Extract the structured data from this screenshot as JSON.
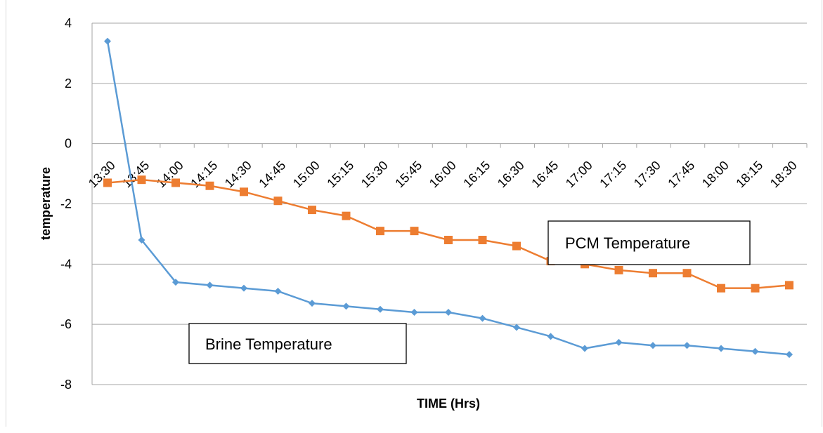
{
  "chart_data": {
    "type": "line",
    "title": "",
    "xlabel": "TIME (Hrs)",
    "ylabel": "temperature",
    "ylim": [
      -8,
      4
    ],
    "yticks": [
      4,
      2,
      0,
      -2,
      -4,
      -6,
      -8
    ],
    "grid": true,
    "categories": [
      "13:30",
      "13:45",
      "14:00",
      "14:15",
      "14:30",
      "14:45",
      "15:00",
      "15:15",
      "15:30",
      "15:45",
      "16:00",
      "16:15",
      "16:30",
      "16:45",
      "17:00",
      "17:15",
      "17:30",
      "17:45",
      "18:00",
      "18:15",
      "18:30"
    ],
    "series": [
      {
        "name": "Brine Temperature",
        "color": "#5b9bd5",
        "marker": "diamond",
        "values": [
          3.4,
          -3.2,
          -4.6,
          -4.7,
          -4.8,
          -4.9,
          -5.3,
          -5.4,
          -5.5,
          -5.6,
          -5.6,
          -5.8,
          -6.1,
          -6.4,
          -6.8,
          -6.6,
          -6.7,
          -6.7,
          -6.8,
          -6.9,
          -7.0
        ]
      },
      {
        "name": "PCM Temperature",
        "color": "#ed7d31",
        "marker": "square",
        "values": [
          -1.3,
          -1.2,
          -1.3,
          -1.4,
          -1.6,
          -1.9,
          -2.2,
          -2.4,
          -2.9,
          -2.9,
          -3.2,
          -3.2,
          -3.4,
          -3.9,
          -4.0,
          -4.2,
          -4.3,
          -4.3,
          -4.8,
          -4.8,
          -4.7
        ]
      }
    ],
    "annotations": [
      "PCM Temperature",
      "Brine Temperature"
    ]
  }
}
